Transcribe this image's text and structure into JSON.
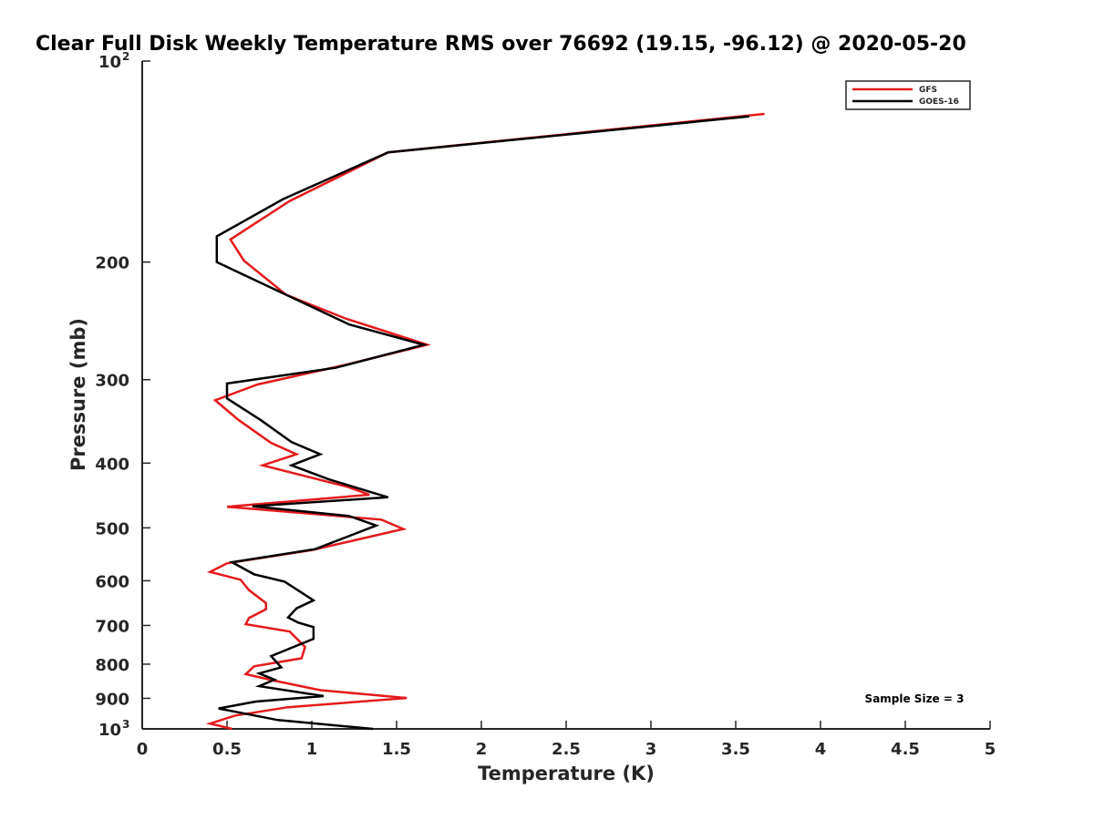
{
  "chart_data": {
    "type": "line",
    "title": "Clear Full Disk Weekly Temperature RMS over 76692 (19.15, -96.12) @ 2020-05-20",
    "xlabel": "Temperature (K)",
    "ylabel": "Pressure (mb)",
    "xlim": [
      0,
      5
    ],
    "ylim": [
      1000,
      100
    ],
    "y_scale": "log",
    "y_reversed": true,
    "x_ticks": [
      0,
      0.5,
      1,
      1.5,
      2,
      2.5,
      3,
      3.5,
      4,
      4.5,
      5
    ],
    "x_tick_labels": [
      "0",
      "0.5",
      "1",
      "1.5",
      "2",
      "2.5",
      "3",
      "3.5",
      "4",
      "4.5",
      "5"
    ],
    "y_ticks": [
      100,
      200,
      300,
      400,
      500,
      600,
      700,
      800,
      900,
      1000
    ],
    "y_tick_labels": [
      {
        "base": "10",
        "exp": "2"
      },
      {
        "base": "200",
        "exp": ""
      },
      {
        "base": "300",
        "exp": ""
      },
      {
        "base": "400",
        "exp": ""
      },
      {
        "base": "500",
        "exp": ""
      },
      {
        "base": "600",
        "exp": ""
      },
      {
        "base": "700",
        "exp": ""
      },
      {
        "base": "800",
        "exp": ""
      },
      {
        "base": "900",
        "exp": ""
      },
      {
        "base": "10",
        "exp": "3"
      }
    ],
    "grid": false,
    "legend_position": "top-right",
    "annotation": "Sample Size = 3",
    "series": [
      {
        "name": "GFS",
        "color": "#e41a1c",
        "points": [
          [
            3.67,
            120
          ],
          [
            1.45,
            137
          ],
          [
            0.87,
            162
          ],
          [
            0.52,
            185
          ],
          [
            0.6,
            199
          ],
          [
            0.85,
            224
          ],
          [
            1.2,
            243
          ],
          [
            1.68,
            266
          ],
          [
            1.2,
            285
          ],
          [
            0.68,
            305
          ],
          [
            0.43,
            322
          ],
          [
            0.57,
            345
          ],
          [
            0.76,
            373
          ],
          [
            0.91,
            388
          ],
          [
            0.71,
            403
          ],
          [
            1.21,
            434
          ],
          [
            1.34,
            446
          ],
          [
            0.5,
            465
          ],
          [
            1.41,
            486
          ],
          [
            1.54,
            502
          ],
          [
            1.0,
            540
          ],
          [
            0.5,
            565
          ],
          [
            0.4,
            582
          ],
          [
            0.58,
            598
          ],
          [
            0.63,
            620
          ],
          [
            0.73,
            648
          ],
          [
            0.73,
            662
          ],
          [
            0.63,
            682
          ],
          [
            0.61,
            697
          ],
          [
            0.87,
            715
          ],
          [
            0.96,
            754
          ],
          [
            0.94,
            784
          ],
          [
            0.66,
            806
          ],
          [
            0.61,
            828
          ],
          [
            0.78,
            847
          ],
          [
            1.05,
            875
          ],
          [
            1.56,
            899
          ],
          [
            0.86,
            928
          ],
          [
            0.55,
            955
          ],
          [
            0.4,
            982
          ],
          [
            0.53,
            1000
          ]
        ]
      },
      {
        "name": "GOES-16",
        "color": "#000000",
        "points": [
          [
            3.58,
            121
          ],
          [
            1.45,
            137
          ],
          [
            0.83,
            161
          ],
          [
            0.44,
            183
          ],
          [
            0.44,
            200
          ],
          [
            0.9,
            227
          ],
          [
            1.22,
            248
          ],
          [
            1.66,
            266
          ],
          [
            1.14,
            288
          ],
          [
            0.5,
            304
          ],
          [
            0.5,
            320
          ],
          [
            0.7,
            345
          ],
          [
            0.88,
            372
          ],
          [
            1.05,
            388
          ],
          [
            0.88,
            403
          ],
          [
            1.1,
            423
          ],
          [
            1.45,
            450
          ],
          [
            0.65,
            464
          ],
          [
            1.22,
            480
          ],
          [
            1.38,
            496
          ],
          [
            1.02,
            538
          ],
          [
            0.53,
            563
          ],
          [
            0.66,
            587
          ],
          [
            0.84,
            602
          ],
          [
            0.94,
            625
          ],
          [
            1.01,
            642
          ],
          [
            0.91,
            660
          ],
          [
            0.86,
            681
          ],
          [
            0.92,
            693
          ],
          [
            1.01,
            704
          ],
          [
            1.01,
            733
          ],
          [
            0.76,
            778
          ],
          [
            0.82,
            809
          ],
          [
            0.69,
            826
          ],
          [
            0.78,
            844
          ],
          [
            0.69,
            863
          ],
          [
            1.07,
            893
          ],
          [
            0.67,
            910
          ],
          [
            0.45,
            932
          ],
          [
            0.8,
            970
          ],
          [
            1.36,
            1000
          ]
        ]
      }
    ]
  }
}
